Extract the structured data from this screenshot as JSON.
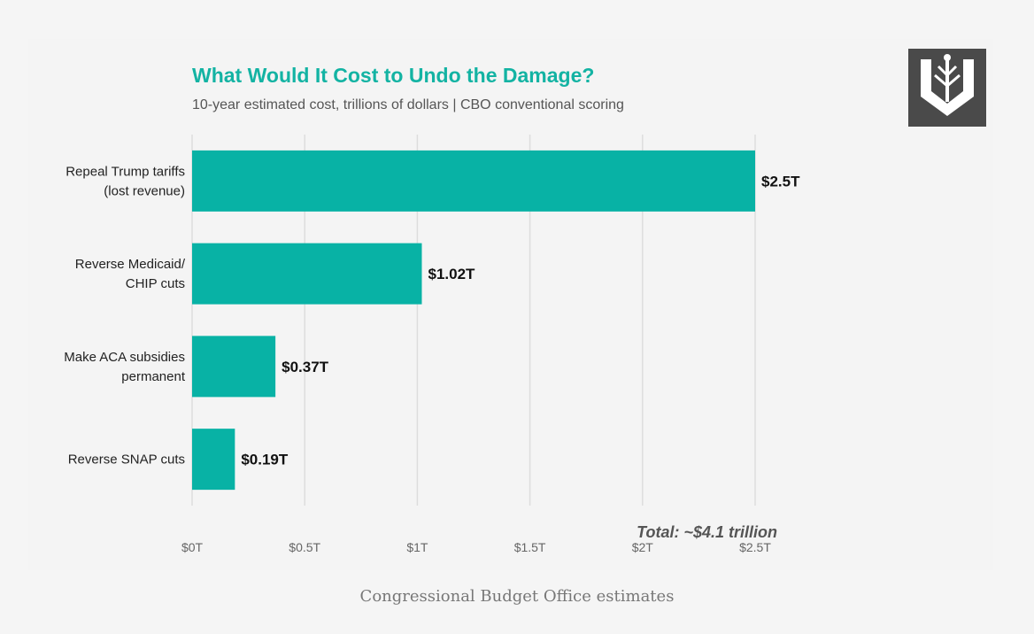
{
  "chart_data": {
    "type": "bar",
    "orientation": "horizontal",
    "title": "What Would It Cost to Undo the Damage?",
    "subtitle": "10-year estimated cost, trillions of dollars | CBO conventional scoring",
    "categories": [
      [
        "Repeal Trump tariffs",
        "(lost revenue)"
      ],
      [
        "Reverse Medicaid/",
        "CHIP cuts"
      ],
      [
        "Make ACA subsidies",
        "permanent"
      ],
      [
        "Reverse SNAP cuts"
      ]
    ],
    "values": [
      2.5,
      1.02,
      0.37,
      0.19
    ],
    "value_labels": [
      "$2.5T",
      "$1.02T",
      "$0.37T",
      "$0.19T"
    ],
    "xlim": [
      0,
      2.5
    ],
    "x_ticks": [
      0,
      0.5,
      1,
      1.5,
      2,
      2.5
    ],
    "x_tick_labels": [
      "$0T",
      "$0.5T",
      "$1T",
      "$1.5T",
      "$2T",
      "$2.5T"
    ],
    "xlabel": "",
    "ylabel": "",
    "grid": true,
    "annotation": "Total: ~$4.1 trillion",
    "bar_color": "#08b2a5",
    "grid_color": "#dddddd"
  },
  "caption": "Congressional Budget Office estimates",
  "logo_icon": "tree-shield-logo-icon"
}
